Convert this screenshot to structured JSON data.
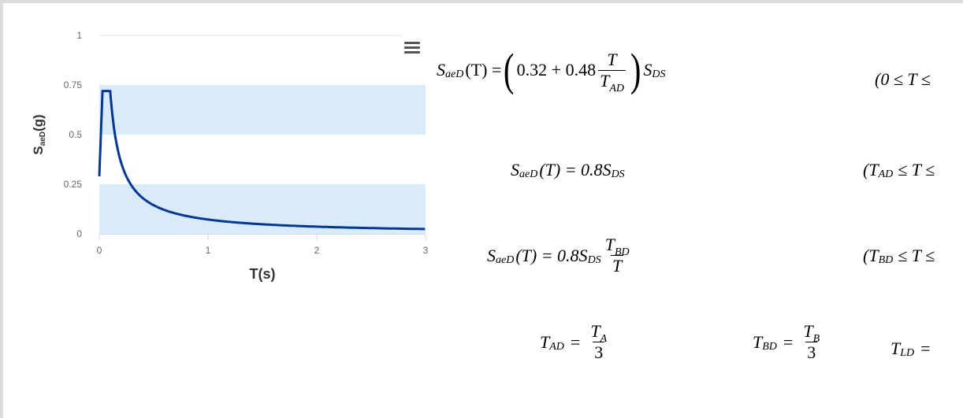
{
  "chart_data": {
    "type": "line",
    "xlabel": "T(s)",
    "ylabel_main": "S",
    "ylabel_sub": "aeD",
    "ylabel_tail": "(g)",
    "xlim": [
      0,
      3
    ],
    "ylim": [
      0,
      1
    ],
    "x_ticks": [
      "0",
      "1",
      "2",
      "3"
    ],
    "y_ticks": [
      "0",
      "0.25",
      "0.5",
      "0.75",
      "1"
    ],
    "grid": false,
    "legend": "none",
    "shaded_bands": [
      [
        0,
        0.25
      ],
      [
        0.5,
        0.75
      ]
    ],
    "series": [
      {
        "x": [
          0,
          0.03,
          0.1,
          0.15,
          0.2,
          0.25,
          0.3,
          0.4,
          0.5,
          0.75,
          1.0,
          1.5,
          2.0,
          2.5,
          3.0
        ],
        "values": [
          0.29,
          0.72,
          0.72,
          0.48,
          0.36,
          0.29,
          0.24,
          0.18,
          0.144,
          0.096,
          0.072,
          0.048,
          0.036,
          0.029,
          0.024
        ]
      }
    ],
    "colors": {
      "line": "#00379e",
      "band": "#d8ebf7",
      "axis": "#ccd6eb"
    }
  },
  "menu": {
    "icon": "hamburger-menu-icon"
  },
  "formulas": {
    "f1": {
      "lhs": "S",
      "lhs_sub": "aeD",
      "arg": "(T) =",
      "c1": "0.32 + 0.48",
      "num": "T",
      "den": "T",
      "den_sub": "AD",
      "tail": "S",
      "tail_sub": "DS",
      "cond": "(0 ≤ T ≤"
    },
    "f2": {
      "lhs": "S",
      "lhs_sub": "aeD",
      "arg": "(T) = 0.8S",
      "tail_sub": "DS",
      "cond": "(T",
      "cond_sub": "AD",
      "cond_tail": "≤ T ≤"
    },
    "f3": {
      "lhs": "S",
      "lhs_sub": "aeD",
      "arg": "(T) = 0.8S",
      "tail_sub": "DS",
      "num": "T",
      "num_sub": "BD",
      "den": "T",
      "cond": "(T",
      "cond_sub": "BD",
      "cond_tail": "≤ T ≤"
    },
    "f4": {
      "a": "T",
      "a_sub": "AD",
      "a_num": "T",
      "a_num_sub": "A",
      "a_den": "3",
      "b": "T",
      "b_sub": "BD",
      "b_num": "T",
      "b_num_sub": "B",
      "b_den": "3",
      "c": "T",
      "c_sub": "LD",
      "eq": "="
    }
  }
}
